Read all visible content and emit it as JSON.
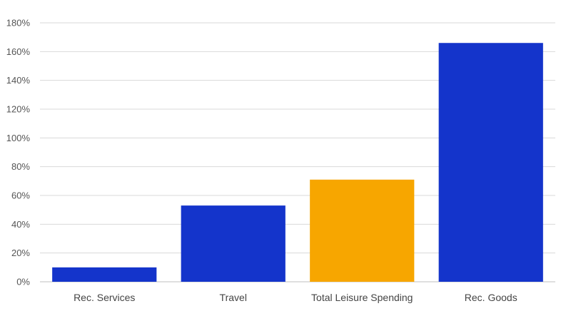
{
  "chart_data": {
    "type": "bar",
    "title": "",
    "xlabel": "",
    "ylabel": "",
    "categories": [
      "Rec. Services",
      "Travel",
      "Total Leisure Spending",
      "Rec. Goods"
    ],
    "values": [
      10,
      53,
      71,
      166
    ],
    "ylim": [
      0,
      180
    ],
    "ytick_step": 20,
    "ytick_labels": [
      "0%",
      "20%",
      "40%",
      "60%",
      "80%",
      "100%",
      "120%",
      "140%",
      "160%",
      "180%"
    ],
    "grid": true,
    "legend": "none",
    "colors": {
      "default": "#1434CB",
      "highlight": "#F7A600",
      "highlight_category": "Total Leisure Spending"
    }
  }
}
